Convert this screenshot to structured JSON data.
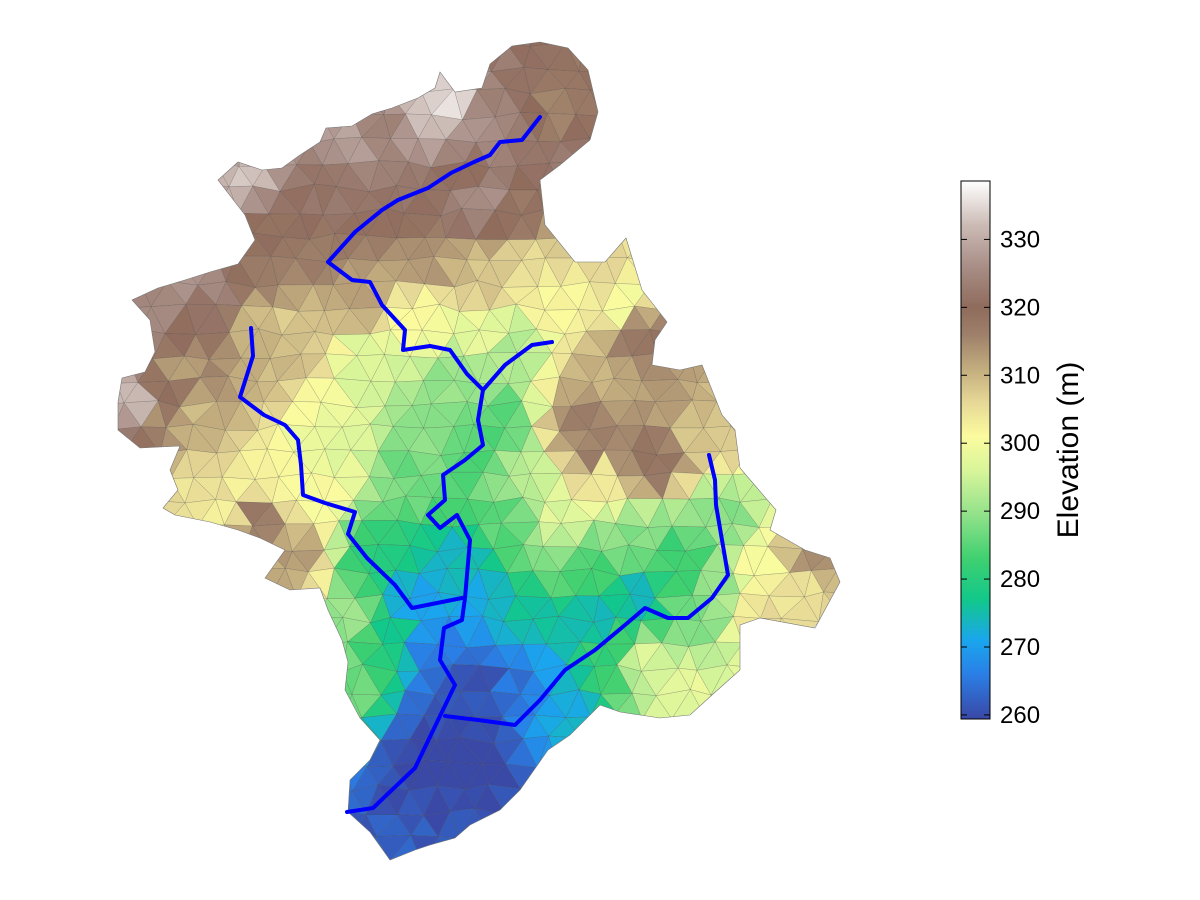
{
  "colorbar": {
    "label": "Elevation (m)",
    "ticks": [
      "260",
      "270",
      "280",
      "290",
      "300",
      "310",
      "320",
      "330"
    ],
    "min": 259.4,
    "max": 338.6,
    "stops": [
      {
        "v": 259.4,
        "c": "#3a48a6"
      },
      {
        "v": 266,
        "c": "#2a7fe6"
      },
      {
        "v": 271,
        "c": "#1aa6ee"
      },
      {
        "v": 277,
        "c": "#12c88a"
      },
      {
        "v": 283,
        "c": "#3fd070"
      },
      {
        "v": 290,
        "c": "#98e38c"
      },
      {
        "v": 296,
        "c": "#d8f59a"
      },
      {
        "v": 301,
        "c": "#fbfb9e"
      },
      {
        "v": 306,
        "c": "#e6d896"
      },
      {
        "v": 311,
        "c": "#c2ac7e"
      },
      {
        "v": 316,
        "c": "#9e806a"
      },
      {
        "v": 320,
        "c": "#8f6b5c"
      },
      {
        "v": 326,
        "c": "#a88e86"
      },
      {
        "v": 332,
        "c": "#cbbab4"
      },
      {
        "v": 338.6,
        "c": "#ffffff"
      }
    ]
  },
  "map": {
    "river_color": "#0000ff",
    "mesh_edge_color": "#555555",
    "elevation_min": 259.4,
    "elevation_max": 338.6
  }
}
